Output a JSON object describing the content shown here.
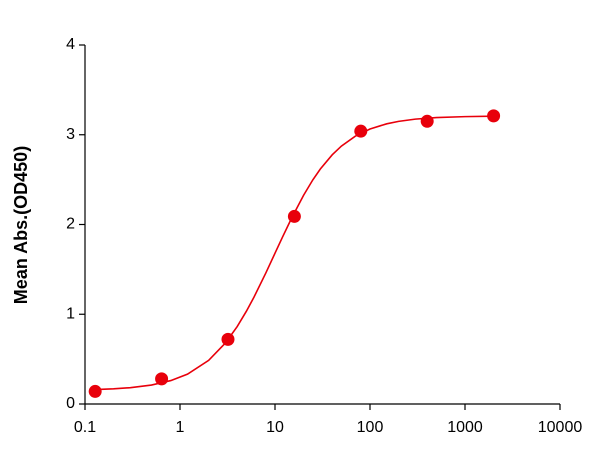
{
  "chart_data": {
    "type": "scatter",
    "ylabel": "Mean Abs.(OD450)",
    "xscale": "log",
    "xlim": [
      0.1,
      10000
    ],
    "xticks": [
      0.1,
      1,
      10,
      100,
      1000,
      10000
    ],
    "ylim": [
      0,
      4
    ],
    "yticks": [
      0,
      1,
      2,
      3,
      4
    ],
    "series": [
      {
        "color": "#e8000b",
        "marker": true,
        "x": [
          0.128,
          0.64,
          3.2,
          16,
          80,
          400,
          2000
        ],
        "values": [
          0.14,
          0.28,
          0.72,
          2.09,
          3.04,
          3.15,
          3.21
        ]
      },
      {
        "color": "#e8000b",
        "line": true,
        "x": [
          0.128,
          0.2,
          0.3,
          0.5,
          0.8,
          1.2,
          2,
          3,
          4,
          5,
          6,
          8,
          10,
          12,
          15,
          20,
          25,
          30,
          40,
          50,
          70,
          100,
          150,
          200,
          300,
          500,
          1000,
          2000
        ],
        "values": [
          0.161,
          0.169,
          0.182,
          0.211,
          0.261,
          0.333,
          0.486,
          0.679,
          0.863,
          1.034,
          1.19,
          1.459,
          1.68,
          1.86,
          2.074,
          2.326,
          2.497,
          2.618,
          2.776,
          2.874,
          2.984,
          3.064,
          3.122,
          3.149,
          3.174,
          3.191,
          3.202,
          3.207
        ]
      }
    ]
  }
}
